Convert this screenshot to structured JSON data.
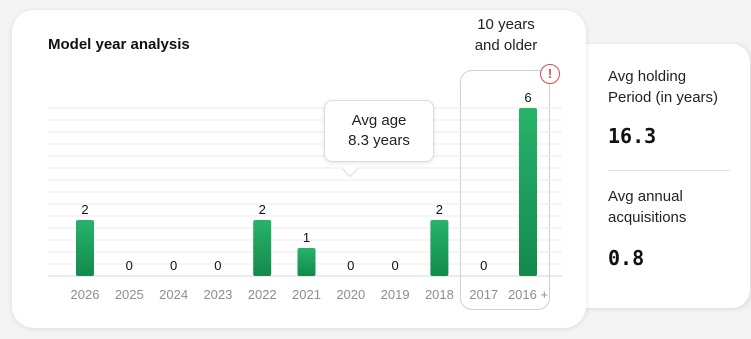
{
  "chart_data": {
    "type": "bar",
    "title": "Model year analysis",
    "categories": [
      "2026",
      "2025",
      "2024",
      "2023",
      "2022",
      "2021",
      "2020",
      "2019",
      "2018",
      "2017",
      "2016 +"
    ],
    "values": [
      2,
      0,
      0,
      0,
      2,
      1,
      0,
      0,
      2,
      0,
      6
    ],
    "data_labels": [
      "2",
      "0",
      "0",
      "0",
      "2",
      "1",
      "0",
      "0",
      "2",
      "0",
      "6"
    ],
    "ylim": [
      0,
      6
    ],
    "grid": true,
    "bar_color": "#138a4c",
    "bar_color_light": "#27b36a",
    "older_group": {
      "label_line1": "10 years",
      "label_line2": "and older",
      "categories": [
        "2017",
        "2016 +"
      ]
    },
    "annotation": {
      "line1": "Avg age",
      "line2": "8.3 years"
    }
  },
  "warning_icon": "exclamation-circle-icon",
  "warning_glyph": "!",
  "warning_color": "#e04b4b",
  "stats": {
    "holding_label_line1": "Avg holding",
    "holding_label_line2": "Period (in years)",
    "holding_value": "16.3",
    "acq_label_line1": "Avg annual",
    "acq_label_line2": "acquisitions",
    "acq_value": "0.8"
  }
}
